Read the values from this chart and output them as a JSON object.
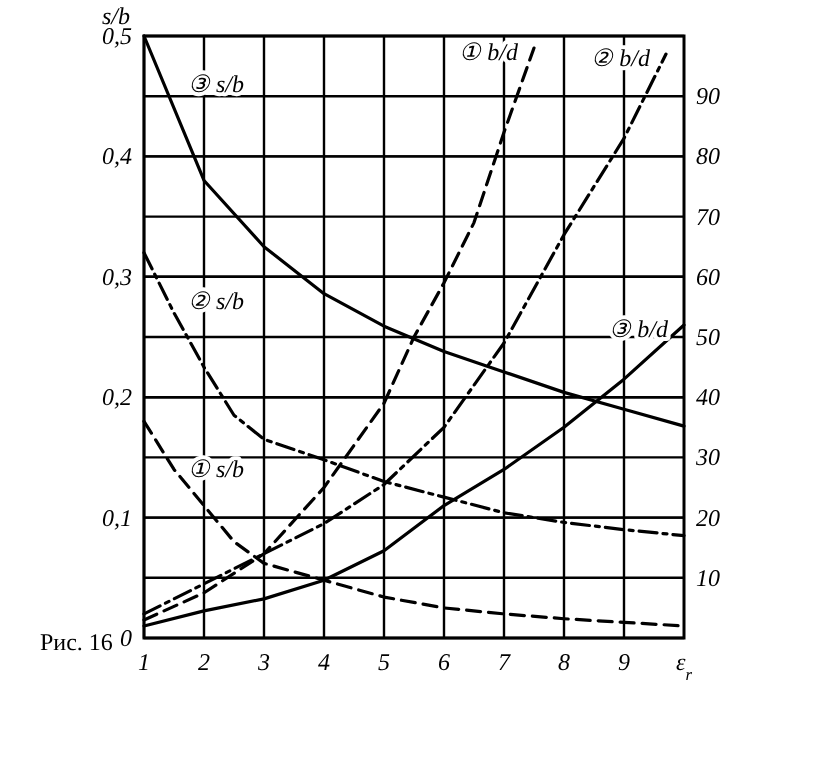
{
  "chart_data": {
    "type": "line",
    "ylabel": "s/b",
    "xlabel": "ε$_{r}$",
    "xlim": [
      1,
      10
    ],
    "xticks": [
      1,
      2,
      3,
      4,
      5,
      6,
      7,
      8,
      9
    ],
    "ylim": [
      0,
      0.5
    ],
    "yticks": [
      {
        "value": 0,
        "label": "0"
      },
      {
        "value": 0.1,
        "label": "0,1"
      },
      {
        "value": 0.2,
        "label": "0,2"
      },
      {
        "value": 0.3,
        "label": "0,3"
      },
      {
        "value": 0.4,
        "label": "0,4"
      },
      {
        "value": 0.5,
        "label": "0,5"
      }
    ],
    "y2lim": [
      0,
      100
    ],
    "y2ticks": [
      10,
      20,
      30,
      40,
      50,
      60,
      70,
      80,
      90
    ],
    "grid": true,
    "marker": "none",
    "series": [
      {
        "name": "③ s/b",
        "color": "#000000",
        "line_style": "solid",
        "x": [
          1,
          2,
          3,
          4,
          5,
          6,
          7,
          8,
          9,
          10
        ],
        "values": [
          0.5,
          0.38,
          0.325,
          0.286,
          0.259,
          0.238,
          0.221,
          0.204,
          0.19,
          0.176
        ]
      },
      {
        "name": "② s/b",
        "color": "#000000",
        "line_style": "dashdot",
        "x": [
          1,
          1.5,
          2,
          2.5,
          3,
          4,
          5,
          6,
          7,
          8,
          9,
          10
        ],
        "values": [
          0.32,
          0.27,
          0.225,
          0.185,
          0.165,
          0.148,
          0.13,
          0.117,
          0.104,
          0.096,
          0.09,
          0.085
        ]
      },
      {
        "name": "① s/b",
        "color": "#000000",
        "line_style": "dashed",
        "x": [
          1,
          1.5,
          2,
          2.5,
          3,
          4,
          5,
          6,
          7,
          8,
          9,
          10
        ],
        "values": [
          0.18,
          0.14,
          0.11,
          0.08,
          0.062,
          0.048,
          0.034,
          0.025,
          0.02,
          0.016,
          0.013,
          0.01
        ]
      },
      {
        "name": "① b/d",
        "color": "#000000",
        "line_style": "dashed",
        "axis": "y2",
        "x": [
          1,
          2,
          3,
          4,
          5,
          5.5,
          6,
          6.5,
          7,
          7.5
        ],
        "values": [
          3,
          7.5,
          14,
          25,
          39,
          50,
          59,
          69,
          84,
          98
        ]
      },
      {
        "name": "② b/d",
        "color": "#000000",
        "line_style": "dashdot",
        "axis": "y2",
        "x": [
          1,
          2,
          3,
          4,
          5,
          6,
          7,
          8,
          9,
          9.7
        ],
        "values": [
          4,
          9,
          14,
          19,
          25.5,
          35,
          49,
          67,
          83,
          97
        ]
      },
      {
        "name": "③ b/d",
        "color": "#000000",
        "line_style": "solid",
        "axis": "y2",
        "x": [
          1,
          2,
          3,
          4,
          5,
          6,
          7,
          8,
          9,
          10
        ],
        "values": [
          2,
          4.5,
          6.5,
          9.6,
          14.5,
          22,
          28,
          35,
          43,
          52
        ]
      }
    ],
    "annotations": [
      "Рис. 16"
    ]
  }
}
